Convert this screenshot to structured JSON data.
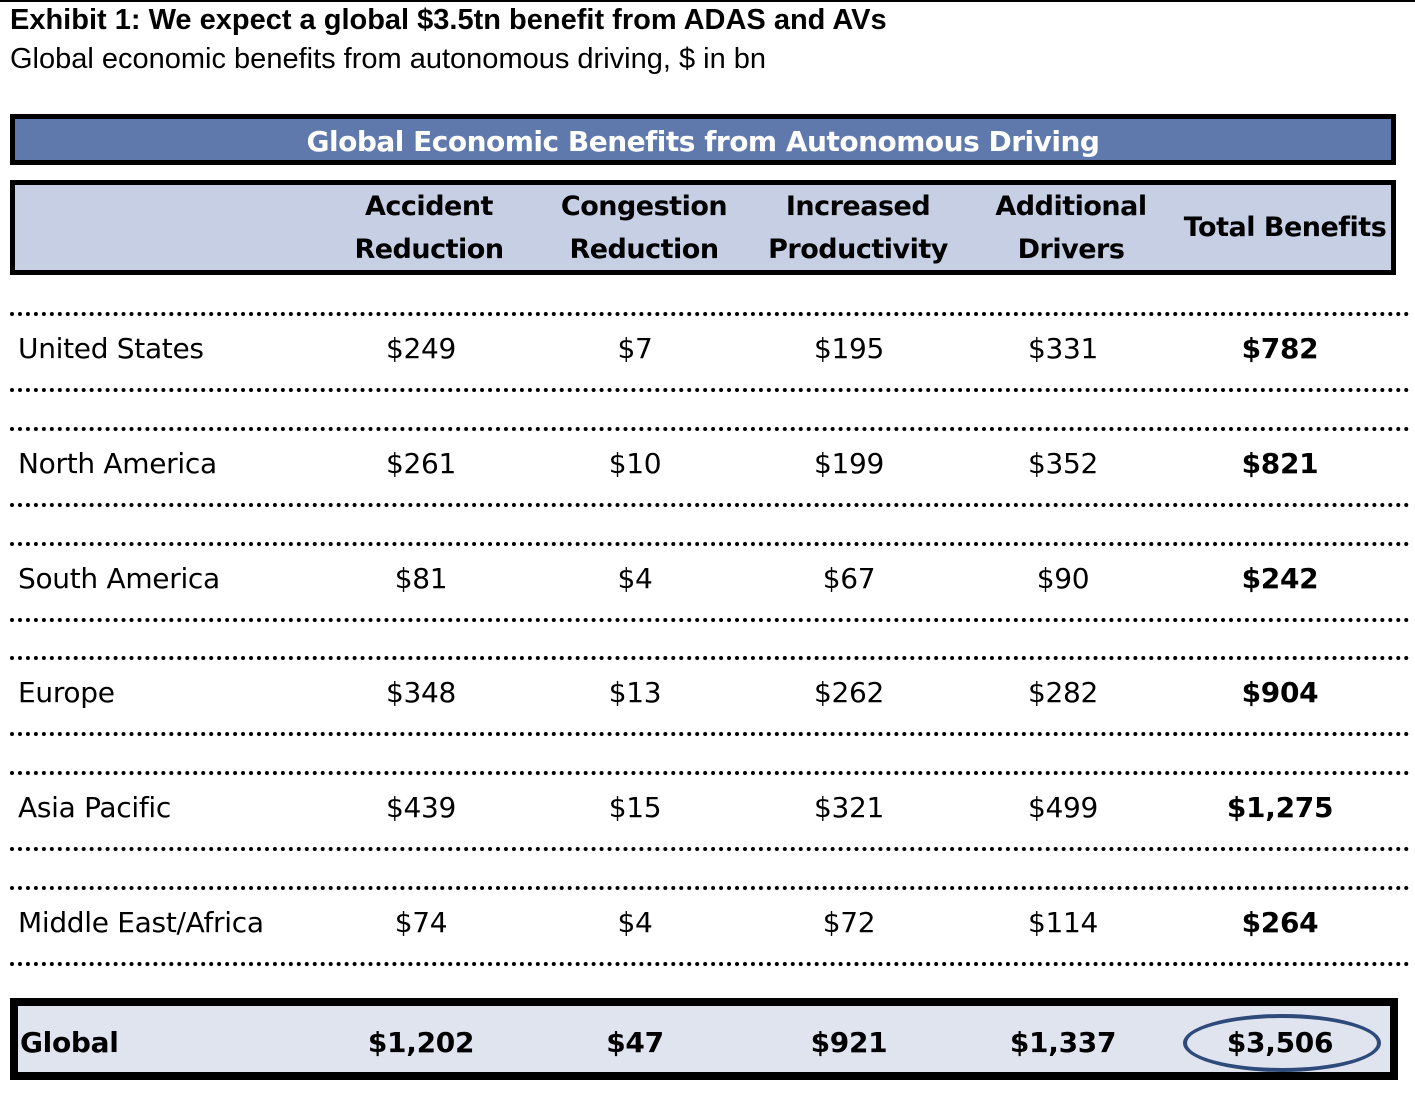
{
  "exhibit": {
    "title": "Exhibit 1: We expect a global $3.5tn benefit from ADAS and AVs",
    "subtitle": "Global economic benefits from autonomous driving, $ in bn"
  },
  "colors": {
    "banner_bg": "#6079ad",
    "header_bg": "#c6cfe4",
    "global_bg": "#dfe4ef",
    "highlight_oval": "#2d4a7a"
  },
  "chart_data": {
    "type": "table",
    "title": "Global Economic Benefits from Autonomous Driving",
    "columns": [
      {
        "line1": "Accident",
        "line2": "Reduction"
      },
      {
        "line1": "Congestion",
        "line2": "Reduction"
      },
      {
        "line1": "Increased",
        "line2": "Productivity"
      },
      {
        "line1": "Additional",
        "line2": "Drivers"
      },
      {
        "line1": "Total Benefits",
        "line2": ""
      }
    ],
    "rows": [
      {
        "region": "United States",
        "values": [
          "$249",
          "$7",
          "$195",
          "$331",
          "$782"
        ]
      },
      {
        "region": "North America",
        "values": [
          "$261",
          "$10",
          "$199",
          "$352",
          "$821"
        ]
      },
      {
        "region": "South America",
        "values": [
          "$81",
          "$4",
          "$67",
          "$90",
          "$242"
        ]
      },
      {
        "region": "Europe",
        "values": [
          "$348",
          "$13",
          "$262",
          "$282",
          "$904"
        ]
      },
      {
        "region": "Asia Pacific",
        "values": [
          "$439",
          "$15",
          "$321",
          "$499",
          "$1,275"
        ]
      },
      {
        "region": "Middle East/Africa",
        "values": [
          "$74",
          "$4",
          "$72",
          "$114",
          "$264"
        ]
      }
    ],
    "total_row": {
      "region": "Global",
      "values": [
        "$1,202",
        "$47",
        "$921",
        "$1,337",
        "$3,506"
      ]
    },
    "highlighted_cell": "$3,506"
  }
}
